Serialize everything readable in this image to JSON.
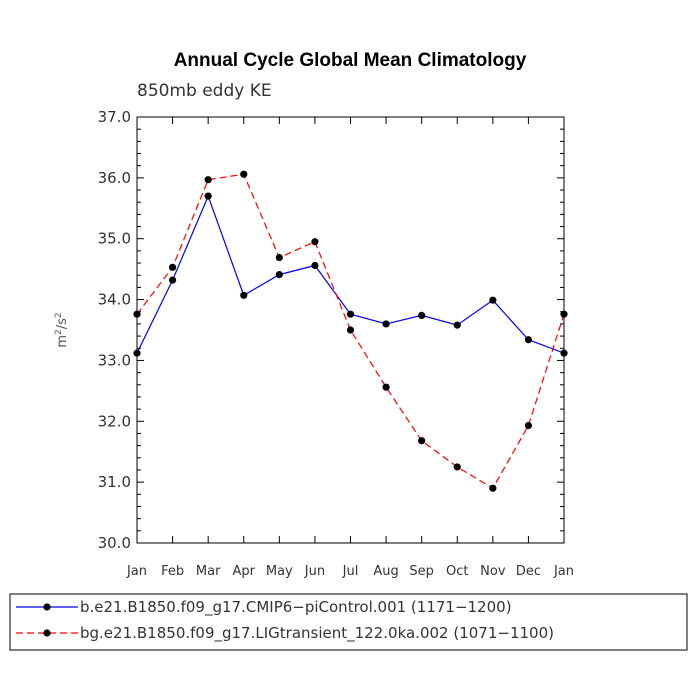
{
  "chart_data": {
    "type": "line",
    "title": "Annual Cycle Global Mean Climatology",
    "subtitle": "850mb eddy KE",
    "ylabel": "m²/s²",
    "ylabel_base": "m",
    "ylabel_sup1": "2",
    "ylabel_mid": "/s",
    "ylabel_sup2": "2",
    "categories": [
      "Jan",
      "Feb",
      "Mar",
      "Apr",
      "May",
      "Jun",
      "Jul",
      "Aug",
      "Sep",
      "Oct",
      "Nov",
      "Dec",
      "Jan"
    ],
    "ylim": [
      30.0,
      37.0
    ],
    "yticks": [
      "30.0",
      "31.0",
      "32.0",
      "33.0",
      "34.0",
      "35.0",
      "36.0",
      "37.0"
    ],
    "grid": false,
    "legend_position": "bottom",
    "series": [
      {
        "name": "b.e21.B1850.f09_g17.CMIP6−piControl.001 (1171−1200)",
        "color": "#0000ff",
        "dash": "solid",
        "marker": "circle",
        "values": [
          33.12,
          34.32,
          35.7,
          34.07,
          34.41,
          34.56,
          33.76,
          33.6,
          33.74,
          33.58,
          33.99,
          33.34,
          33.12
        ]
      },
      {
        "name": "bg.e21.B1850.f09_g17.LIGtransient_122.0ka.002 (1071−1100)",
        "color": "#ff0000",
        "dash": "dashed",
        "marker": "circle",
        "values": [
          33.76,
          34.53,
          35.97,
          36.06,
          34.69,
          34.95,
          33.5,
          32.56,
          31.68,
          31.25,
          30.9,
          31.93,
          33.76
        ]
      }
    ]
  }
}
